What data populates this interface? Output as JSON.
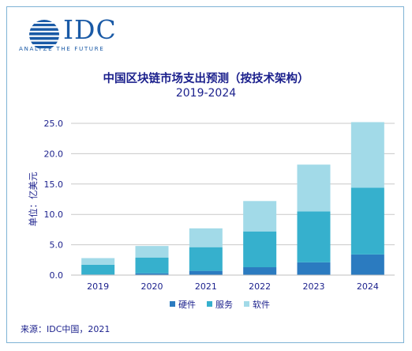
{
  "brand": {
    "logo_text": "IDC",
    "tagline": "ANALYZE THE FUTURE",
    "colors": {
      "brand_blue": "#1a5aa6",
      "title_navy": "#1a1f8c"
    }
  },
  "source_note": "来源：IDC中国，2021",
  "chart_data": {
    "type": "bar",
    "stacked": true,
    "title": "中国区块链市场支出预测（按技术架构）",
    "subtitle": "2019-2024",
    "xlabel": "",
    "ylabel": "单位：亿美元",
    "categories": [
      "2019",
      "2020",
      "2021",
      "2022",
      "2023",
      "2024"
    ],
    "series": [
      {
        "name": "硬件",
        "values": [
          0.1,
          0.3,
          0.7,
          1.3,
          2.1,
          3.4
        ],
        "color": "#2b7bc0"
      },
      {
        "name": "服务",
        "values": [
          1.6,
          2.6,
          3.9,
          5.9,
          8.4,
          11.0
        ],
        "color": "#36b0cd"
      },
      {
        "name": "软件",
        "values": [
          1.1,
          1.9,
          3.1,
          5.0,
          7.7,
          10.8
        ],
        "color": "#a2dae8"
      }
    ],
    "ylim": [
      0,
      25
    ],
    "yticks": [
      "0.0",
      "5.0",
      "10.0",
      "15.0",
      "20.0",
      "25.0"
    ],
    "grid": true,
    "legend": "bottom"
  }
}
